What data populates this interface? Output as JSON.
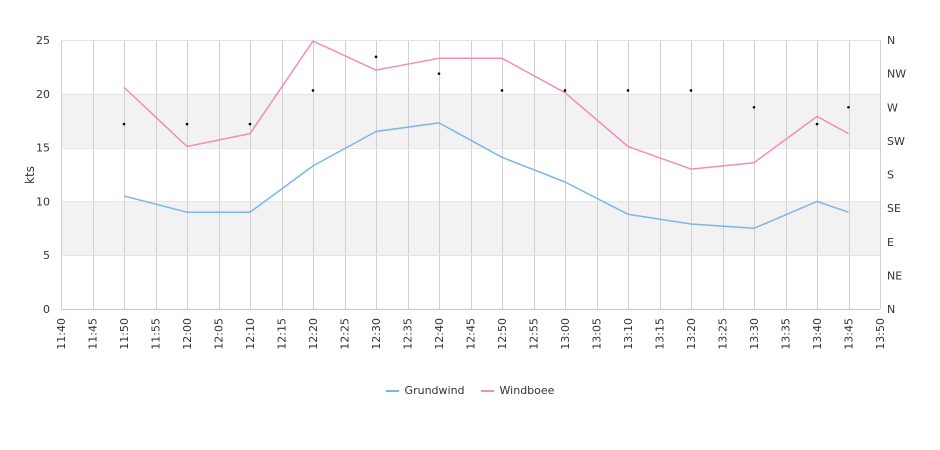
{
  "chart_data": {
    "type": "line",
    "x": [
      "11:50",
      "12:00",
      "12:10",
      "12:20",
      "12:30",
      "12:40",
      "12:50",
      "13:00",
      "13:10",
      "13:20",
      "13:30",
      "13:40",
      "13:45"
    ],
    "x_ticks": [
      "11:40",
      "11:45",
      "11:50",
      "11:55",
      "12:00",
      "12:05",
      "12:10",
      "12:15",
      "12:20",
      "12:25",
      "12:30",
      "12:35",
      "12:40",
      "12:45",
      "12:50",
      "12:55",
      "13:00",
      "13:05",
      "13:10",
      "13:15",
      "13:20",
      "13:25",
      "13:30",
      "13:35",
      "13:40",
      "13:45",
      "13:50"
    ],
    "xlim": [
      "11:40",
      "13:50"
    ],
    "ylabel": "kts",
    "ylim": [
      0,
      25
    ],
    "y_ticks": [
      0,
      5,
      10,
      15,
      20,
      25
    ],
    "y2_ticks": [
      "N",
      "NE",
      "E",
      "SE",
      "S",
      "SW",
      "W",
      "NW",
      "N"
    ],
    "y2lim": [
      0,
      360
    ],
    "series": [
      {
        "name": "Grundwind",
        "color": "#7cb5ec",
        "values": [
          10.5,
          9.0,
          9.0,
          13.3,
          16.5,
          17.3,
          14.1,
          11.8,
          8.8,
          7.9,
          7.5,
          10.0,
          9.0
        ]
      },
      {
        "name": "Windboee",
        "color": "#f08cc0",
        "values": [
          20.6,
          15.1,
          16.3,
          24.9,
          22.2,
          23.3,
          23.3,
          20.1,
          15.1,
          13.0,
          13.6,
          17.9,
          16.3
        ]
      }
    ],
    "direction": {
      "axis": "right",
      "x": [
        "11:50",
        "12:00",
        "12:10",
        "12:20",
        "12:30",
        "12:40",
        "12:50",
        "13:00",
        "13:10",
        "13:20",
        "13:30",
        "13:40",
        "13:45"
      ],
      "values": [
        247.5,
        247.5,
        247.5,
        292.5,
        337.5,
        315,
        292.5,
        292.5,
        292.5,
        292.5,
        270,
        247.5,
        270
      ]
    },
    "bands": [
      [
        5,
        10
      ],
      [
        15,
        20
      ]
    ],
    "grid": true,
    "legend": "bottom-center"
  }
}
